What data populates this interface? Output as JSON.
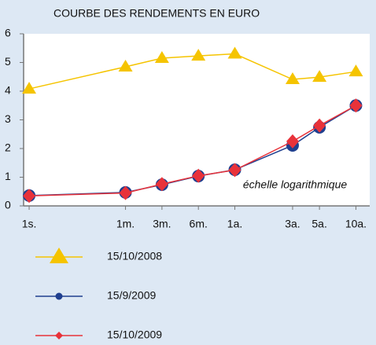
{
  "chart_data": {
    "type": "line",
    "title": "COURBE DES RENDEMENTS EN EURO",
    "annotation": "échelle logarithmique",
    "xscale": "log",
    "x": [
      0.02,
      0.125,
      0.25,
      0.5,
      1,
      3,
      5,
      10
    ],
    "xlim": [
      0.018,
      13
    ],
    "xticks": [
      {
        "value": 0.02,
        "label": "1s."
      },
      {
        "value": 0.125,
        "label": "1m."
      },
      {
        "value": 0.25,
        "label": "3m."
      },
      {
        "value": 0.5,
        "label": "6m."
      },
      {
        "value": 1,
        "label": "1a."
      },
      {
        "value": 3,
        "label": "3a."
      },
      {
        "value": 5,
        "label": "5a."
      },
      {
        "value": 10,
        "label": "10a."
      }
    ],
    "ylim": [
      0,
      6
    ],
    "yticks": [
      0,
      1,
      2,
      3,
      4,
      5,
      6
    ],
    "series": [
      {
        "name": "15/10/2008",
        "color": "#f5c400",
        "marker": "triangle",
        "values": [
          4.08,
          4.85,
          5.15,
          5.23,
          5.3,
          4.41,
          4.49,
          4.68
        ]
      },
      {
        "name": "15/9/2009",
        "color": "#1f3f8f",
        "marker": "circle",
        "values": [
          0.36,
          0.47,
          0.74,
          1.04,
          1.26,
          2.11,
          2.74,
          3.5
        ]
      },
      {
        "name": "15/10/2009",
        "color": "#e8323a",
        "marker": "diamond",
        "values": [
          0.35,
          0.45,
          0.76,
          1.05,
          1.25,
          2.25,
          2.8,
          3.5
        ]
      }
    ]
  }
}
